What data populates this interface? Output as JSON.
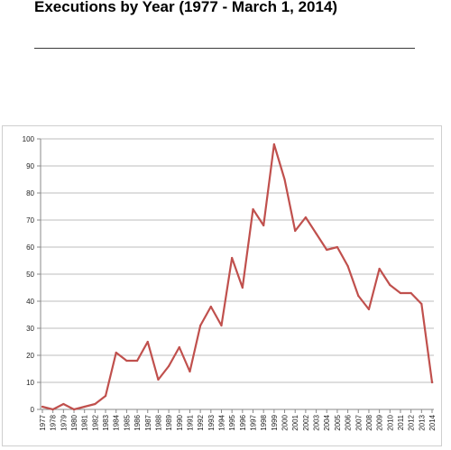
{
  "page": {
    "title": "Executions by Year (1977 - March 1, 2014)"
  },
  "chart_data": {
    "type": "line",
    "title": "",
    "xlabel": "",
    "ylabel": "",
    "ylim": [
      0,
      100
    ],
    "y_ticks": [
      0,
      10,
      20,
      30,
      40,
      50,
      60,
      70,
      80,
      90,
      100
    ],
    "grid": "horizontal",
    "legend": "none",
    "line_color": "#c0504d",
    "categories": [
      "1977",
      "1978",
      "1979",
      "1980",
      "1981",
      "1982",
      "1983",
      "1984",
      "1985",
      "1986",
      "1987",
      "1988",
      "1989",
      "1990",
      "1991",
      "1992",
      "1993",
      "1994",
      "1995",
      "1996",
      "1997",
      "1998",
      "1999",
      "2000",
      "2001",
      "2002",
      "2003",
      "2004",
      "2005",
      "2006",
      "2007",
      "2008",
      "2009",
      "2010",
      "2011",
      "2012",
      "2013",
      "2014"
    ],
    "series": [
      {
        "values": [
          1,
          0,
          2,
          0,
          1,
          2,
          5,
          21,
          18,
          18,
          25,
          11,
          16,
          23,
          14,
          31,
          38,
          31,
          56,
          45,
          74,
          68,
          98,
          85,
          66,
          71,
          65,
          59,
          60,
          53,
          42,
          37,
          52,
          46,
          43,
          43,
          39,
          10
        ]
      }
    ]
  }
}
